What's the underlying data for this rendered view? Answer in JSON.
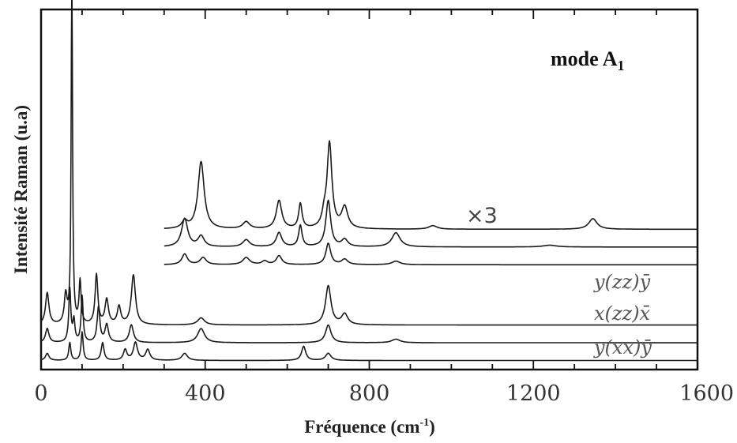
{
  "chart_data": {
    "type": "line",
    "title": "",
    "mode_label": "mode A",
    "mode_subscript": "1",
    "xlabel": "Fréquence (cm",
    "xlabel_sup": "-1",
    "xlabel_end": ")",
    "ylabel": "Intensité Raman (u.a)",
    "xlim": [
      0,
      1600
    ],
    "x_ticks": [
      "0",
      "400",
      "800",
      "1200",
      "1600"
    ],
    "x_tick_values": [
      0,
      400,
      800,
      1200,
      1600
    ],
    "grid": false,
    "scale_annotation": "×3",
    "configuration_labels": [
      "y(zz)ȳ",
      "x(zz)x̄",
      "y(xx)ȳ"
    ],
    "series": [
      {
        "group": "upper",
        "x_range": [
          300,
          1600
        ],
        "baseline": 0.38,
        "peaks": [
          [
            350,
            0.02,
            8
          ],
          [
            390,
            0.19,
            9
          ],
          [
            500,
            0.02,
            10
          ],
          [
            580,
            0.08,
            8
          ],
          [
            632,
            0.07,
            5
          ],
          [
            690,
            0.03,
            6
          ],
          [
            703,
            0.24,
            7
          ],
          [
            740,
            0.06,
            9
          ],
          [
            955,
            0.01,
            12
          ],
          [
            1345,
            0.03,
            12
          ]
        ]
      },
      {
        "group": "upper",
        "x_range": [
          300,
          1600
        ],
        "baseline": 0.33,
        "peaks": [
          [
            350,
            0.08,
            9
          ],
          [
            390,
            0.03,
            9
          ],
          [
            500,
            0.02,
            10
          ],
          [
            580,
            0.04,
            8
          ],
          [
            632,
            0.06,
            5
          ],
          [
            700,
            0.13,
            7
          ],
          [
            740,
            0.02,
            9
          ],
          [
            865,
            0.04,
            12
          ],
          [
            1240,
            0.005,
            20
          ]
        ]
      },
      {
        "group": "upper",
        "x_range": [
          300,
          1600
        ],
        "baseline": 0.28,
        "peaks": [
          [
            350,
            0.03,
            8
          ],
          [
            395,
            0.02,
            9
          ],
          [
            500,
            0.02,
            10
          ],
          [
            545,
            0.01,
            8
          ],
          [
            580,
            0.025,
            8
          ],
          [
            700,
            0.06,
            7
          ],
          [
            740,
            0.015,
            9
          ],
          [
            865,
            0.01,
            12
          ]
        ]
      },
      {
        "group": "lower",
        "x_range": [
          0,
          1600
        ],
        "baseline": 0.11,
        "peaks": [
          [
            15,
            0.09,
            5
          ],
          [
            60,
            0.08,
            4
          ],
          [
            75,
            0.97,
            2
          ],
          [
            95,
            0.12,
            3
          ],
          [
            135,
            0.14,
            4
          ],
          [
            160,
            0.07,
            5
          ],
          [
            190,
            0.05,
            5
          ],
          [
            225,
            0.14,
            6
          ],
          [
            390,
            0.02,
            10
          ],
          [
            700,
            0.11,
            8
          ],
          [
            740,
            0.03,
            9
          ]
        ]
      },
      {
        "group": "lower",
        "x_range": [
          0,
          1600
        ],
        "baseline": 0.06,
        "peaks": [
          [
            15,
            0.04,
            5
          ],
          [
            70,
            0.15,
            3
          ],
          [
            80,
            0.06,
            3
          ],
          [
            100,
            0.13,
            3
          ],
          [
            140,
            0.1,
            4
          ],
          [
            160,
            0.05,
            5
          ],
          [
            220,
            0.05,
            6
          ],
          [
            390,
            0.04,
            10
          ],
          [
            700,
            0.05,
            8
          ],
          [
            865,
            0.01,
            12
          ]
        ]
      },
      {
        "group": "lower",
        "x_range": [
          0,
          1600
        ],
        "baseline": 0.01,
        "peaks": [
          [
            15,
            0.02,
            5
          ],
          [
            70,
            0.05,
            3
          ],
          [
            100,
            0.08,
            3
          ],
          [
            150,
            0.05,
            4
          ],
          [
            205,
            0.03,
            5
          ],
          [
            230,
            0.05,
            6
          ],
          [
            260,
            0.03,
            6
          ],
          [
            350,
            0.02,
            8
          ],
          [
            640,
            0.04,
            6
          ],
          [
            700,
            0.02,
            8
          ]
        ]
      }
    ]
  }
}
